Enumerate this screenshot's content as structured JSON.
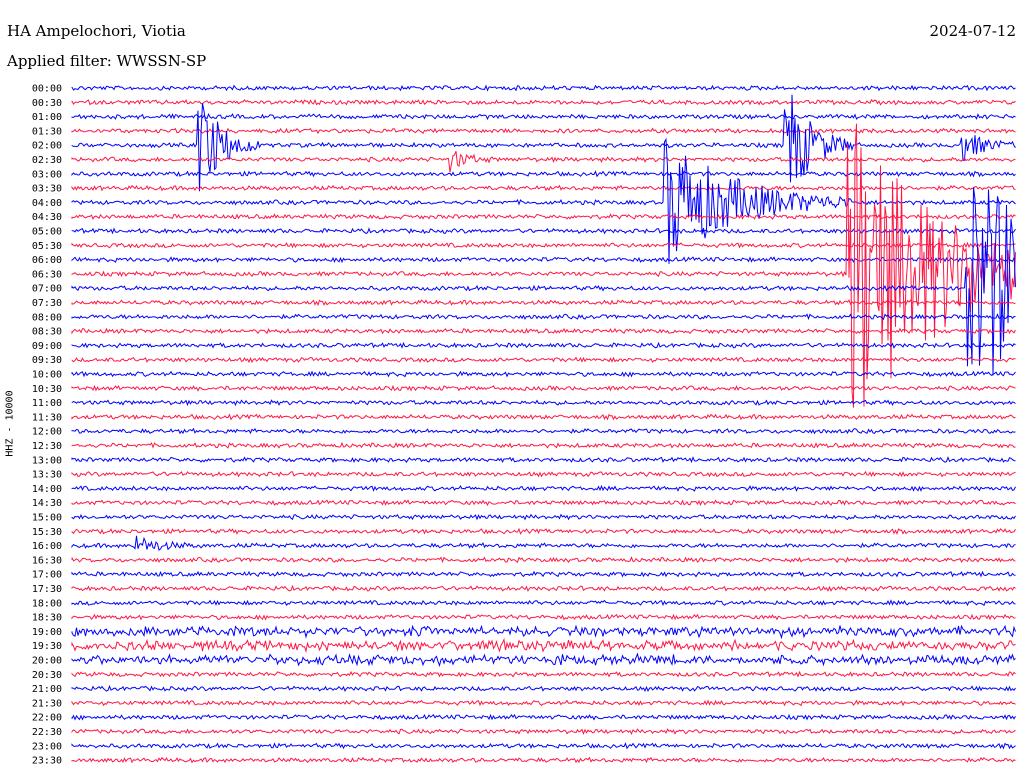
{
  "header": {
    "station": "HA Ampelochori, Viotia",
    "filter": "Applied filter: WWSSN-SP",
    "date": "2024-07-12"
  },
  "axis_label": "HHZ - 10000",
  "colors": {
    "trace_a": "#0000ff",
    "trace_b": "#ff1744",
    "background": "#ffffff"
  },
  "chart_data": {
    "type": "line",
    "title": "HA Ampelochori, Viotia",
    "subtitle": "Applied filter: WWSSN-SP",
    "date": "2024-07-12",
    "ylabel": "HHZ - 10000",
    "row_labels": [
      "00:00",
      "00:30",
      "01:00",
      "01:30",
      "02:00",
      "02:30",
      "03:00",
      "03:30",
      "04:00",
      "04:30",
      "05:00",
      "05:30",
      "06:00",
      "06:30",
      "07:00",
      "07:30",
      "08:00",
      "08:30",
      "09:00",
      "09:30",
      "10:00",
      "10:30",
      "11:00",
      "11:30",
      "12:00",
      "12:30",
      "13:00",
      "13:30",
      "14:00",
      "14:30",
      "15:00",
      "15:30",
      "16:00",
      "16:30",
      "17:00",
      "17:30",
      "18:00",
      "18:30",
      "19:00",
      "19:30",
      "20:00",
      "20:30",
      "21:00",
      "21:30",
      "22:00",
      "22:30",
      "23:00",
      "23:30"
    ],
    "minutes_per_row": 15,
    "series": [
      {
        "color": "#0000ff"
      },
      {
        "color": "#ff1744"
      }
    ],
    "events": [
      {
        "row": 4,
        "minute": 2.0,
        "amplitude": 60,
        "duration": 1.0
      },
      {
        "row": 5,
        "minute": 6.0,
        "amplitude": 12,
        "duration": 0.7
      },
      {
        "row": 4,
        "minute": 11.3,
        "amplitude": 75,
        "duration": 1.1
      },
      {
        "row": 4,
        "minute": 14.1,
        "amplitude": 18,
        "duration": 1.0
      },
      {
        "row": 13,
        "minute": 12.3,
        "amplitude": 180,
        "duration": 4.0
      },
      {
        "row": 8,
        "minute": 9.4,
        "amplitude": 70,
        "duration": 3.0
      },
      {
        "row": 14,
        "minute": 14.2,
        "amplitude": 120,
        "duration": 6.0
      },
      {
        "row": 32,
        "minute": 1.0,
        "amplitude": 10,
        "duration": 1.0
      }
    ]
  }
}
